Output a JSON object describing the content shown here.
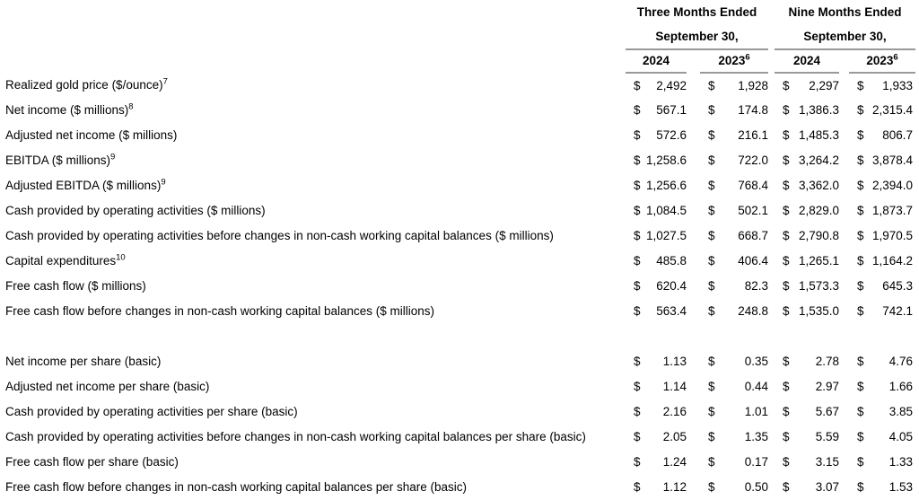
{
  "document": {
    "currency_symbol": "$",
    "header": {
      "groups": [
        {
          "title": "Three Months Ended",
          "subtitle": "September 30,",
          "years": [
            {
              "year": "2024",
              "footnote": ""
            },
            {
              "year": "2023",
              "footnote": "6"
            }
          ]
        },
        {
          "title": "Nine Months Ended",
          "subtitle": "September 30,",
          "years": [
            {
              "year": "2024",
              "footnote": ""
            },
            {
              "year": "2023",
              "footnote": "6"
            }
          ]
        }
      ]
    },
    "sections": [
      {
        "rows": [
          {
            "label": "Realized gold price ($/ounce)",
            "footnote": "7",
            "values": [
              "2,492",
              "1,928",
              "2,297",
              "1,933"
            ]
          },
          {
            "label": "Net income ($ millions)",
            "footnote": "8",
            "values": [
              "567.1",
              "174.8",
              "1,386.3",
              "2,315.4"
            ]
          },
          {
            "label": "Adjusted net income ($ millions)",
            "footnote": "",
            "values": [
              "572.6",
              "216.1",
              "1,485.3",
              "806.7"
            ]
          },
          {
            "label": "EBITDA ($ millions)",
            "footnote": "9",
            "values": [
              "1,258.6",
              "722.0",
              "3,264.2",
              "3,878.4"
            ]
          },
          {
            "label": "Adjusted EBITDA ($ millions)",
            "footnote": "9",
            "values": [
              "1,256.6",
              "768.4",
              "3,362.0",
              "2,394.0"
            ]
          },
          {
            "label": "Cash provided by operating activities ($ millions)",
            "footnote": "",
            "values": [
              "1,084.5",
              "502.1",
              "2,829.0",
              "1,873.7"
            ]
          },
          {
            "label": "Cash provided by operating activities before changes in non-cash working capital balances ($ millions)",
            "footnote": "",
            "values": [
              "1,027.5",
              "668.7",
              "2,790.8",
              "1,970.5"
            ]
          },
          {
            "label": "Capital expenditures",
            "footnote": "10",
            "values": [
              "485.8",
              "406.4",
              "1,265.1",
              "1,164.2"
            ]
          },
          {
            "label": "Free cash flow ($ millions)",
            "footnote": "",
            "values": [
              "620.4",
              "82.3",
              "1,573.3",
              "645.3"
            ]
          },
          {
            "label": "Free cash flow before changes in non-cash working capital balances ($ millions)",
            "footnote": "",
            "values": [
              "563.4",
              "248.8",
              "1,535.0",
              "742.1"
            ]
          }
        ]
      },
      {
        "rows": [
          {
            "label": "Net income per share (basic)",
            "footnote": "",
            "values": [
              "1.13",
              "0.35",
              "2.78",
              "4.76"
            ]
          },
          {
            "label": "Adjusted net income per share (basic)",
            "footnote": "",
            "values": [
              "1.14",
              "0.44",
              "2.97",
              "1.66"
            ]
          },
          {
            "label": "Cash provided by operating activities per share (basic)",
            "footnote": "",
            "values": [
              "2.16",
              "1.01",
              "5.67",
              "3.85"
            ]
          },
          {
            "label": "Cash provided by operating activities before changes in non-cash working capital balances per share (basic)",
            "footnote": "",
            "values": [
              "2.05",
              "1.35",
              "5.59",
              "4.05"
            ]
          },
          {
            "label": "Free cash flow per share (basic)",
            "footnote": "",
            "values": [
              "1.24",
              "0.17",
              "3.15",
              "1.33"
            ]
          },
          {
            "label": "Free cash flow before changes in non-cash working capital balances per share (basic)",
            "footnote": "",
            "values": [
              "1.12",
              "0.50",
              "3.07",
              "1.53"
            ]
          }
        ]
      }
    ]
  }
}
